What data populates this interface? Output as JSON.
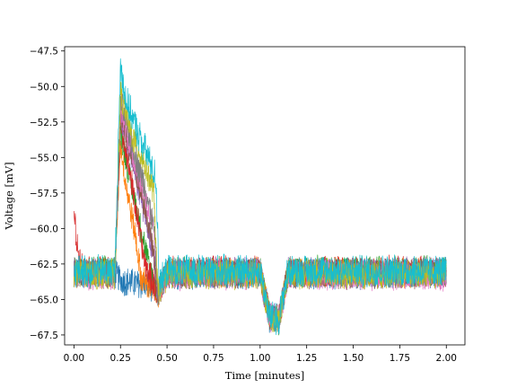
{
  "chart_data": {
    "type": "line",
    "title": "",
    "xlabel": "Time [minutes]",
    "ylabel": "Voltage [mV]",
    "xlim": [
      -0.05,
      2.1
    ],
    "ylim": [
      -68.2,
      -47.2
    ],
    "x_ticks": [
      0.0,
      0.25,
      0.5,
      0.75,
      1.0,
      1.25,
      1.5,
      1.75,
      2.0
    ],
    "x_tick_labels": [
      "0.00",
      "0.25",
      "0.50",
      "0.75",
      "1.00",
      "1.25",
      "1.50",
      "1.75",
      "2.00"
    ],
    "y_ticks": [
      -67.5,
      -65.0,
      -62.5,
      -60.0,
      -57.5,
      -55.0,
      -52.5,
      -50.0,
      -47.5
    ],
    "y_tick_labels": [
      "−67.5",
      "−65.0",
      "−62.5",
      "−60.0",
      "−57.5",
      "−55.0",
      "−52.5",
      "−50.0",
      "−47.5"
    ],
    "grid": false,
    "legend": "none",
    "series": [
      {
        "color": "#1f77b4",
        "baseline": -63.2,
        "noise": 0.9,
        "peak": -63.6,
        "decay_end": 0.3,
        "x": [
          0.0,
          0.22,
          0.25,
          0.3,
          0.4,
          0.45,
          0.5,
          1.0,
          1.05,
          1.1,
          1.15,
          2.0
        ],
        "y": [
          -63.2,
          -63.2,
          -63.6,
          -63.8,
          -64.0,
          -64.4,
          -63.2,
          -63.2,
          -66.2,
          -66.4,
          -63.2,
          -63.2
        ]
      },
      {
        "color": "#ff7f0e",
        "baseline": -63.1,
        "noise": 0.9,
        "peak": -54.0,
        "decay_end": 0.36,
        "x": [
          0.0,
          0.22,
          0.25,
          0.28,
          0.33,
          0.36,
          0.45,
          0.5,
          1.0,
          1.05,
          1.1,
          1.15,
          2.0
        ],
        "y": [
          -63.1,
          -63.1,
          -54.0,
          -57.0,
          -60.5,
          -63.5,
          -64.6,
          -63.1,
          -63.1,
          -66.2,
          -66.4,
          -63.1,
          -63.1
        ]
      },
      {
        "color": "#2ca02c",
        "baseline": -63.0,
        "noise": 0.9,
        "peak": -53.0,
        "decay_end": 0.4,
        "x": [
          0.0,
          0.22,
          0.25,
          0.3,
          0.36,
          0.4,
          0.45,
          0.5,
          1.0,
          1.05,
          1.1,
          1.15,
          2.0
        ],
        "y": [
          -63.0,
          -63.0,
          -53.0,
          -56.5,
          -60.0,
          -62.5,
          -64.6,
          -63.0,
          -63.0,
          -66.2,
          -66.4,
          -63.0,
          -63.0
        ]
      },
      {
        "color": "#d62728",
        "baseline": -63.0,
        "noise": 0.9,
        "peak": -52.5,
        "decay_end": 0.38,
        "x": [
          0.0,
          0.02,
          0.05,
          0.22,
          0.25,
          0.3,
          0.35,
          0.38,
          0.45,
          0.5,
          1.0,
          1.05,
          1.1,
          1.15,
          2.0
        ],
        "y": [
          -59.0,
          -61.5,
          -63.0,
          -63.0,
          -52.5,
          -56.0,
          -60.0,
          -62.5,
          -64.6,
          -63.0,
          -63.0,
          -66.2,
          -66.4,
          -63.0,
          -63.0
        ]
      },
      {
        "color": "#9467bd",
        "baseline": -63.1,
        "noise": 0.9,
        "peak": -52.0,
        "decay_end": 0.42,
        "x": [
          0.0,
          0.22,
          0.25,
          0.32,
          0.38,
          0.42,
          0.45,
          0.5,
          1.0,
          1.05,
          1.1,
          1.15,
          2.0
        ],
        "y": [
          -63.1,
          -63.1,
          -52.0,
          -55.5,
          -59.0,
          -61.5,
          -64.6,
          -63.1,
          -63.1,
          -66.2,
          -66.4,
          -63.1,
          -63.1
        ]
      },
      {
        "color": "#8c564b",
        "baseline": -63.2,
        "noise": 0.9,
        "peak": -52.0,
        "decay_end": 0.42,
        "x": [
          0.0,
          0.22,
          0.25,
          0.32,
          0.38,
          0.42,
          0.45,
          0.5,
          1.0,
          1.05,
          1.1,
          1.15,
          2.0
        ],
        "y": [
          -63.2,
          -63.2,
          -52.0,
          -55.5,
          -58.5,
          -61.0,
          -64.6,
          -63.2,
          -63.2,
          -66.2,
          -66.4,
          -63.2,
          -63.2
        ]
      },
      {
        "color": "#e377c2",
        "baseline": -63.3,
        "noise": 0.9,
        "peak": -51.5,
        "decay_end": 0.43,
        "x": [
          0.0,
          0.22,
          0.25,
          0.32,
          0.38,
          0.43,
          0.45,
          0.5,
          1.0,
          1.05,
          1.1,
          1.15,
          2.0
        ],
        "y": [
          -63.3,
          -63.3,
          -51.5,
          -55.0,
          -57.5,
          -60.5,
          -64.6,
          -63.3,
          -63.3,
          -66.2,
          -66.4,
          -63.3,
          -63.3
        ]
      },
      {
        "color": "#7f7f7f",
        "baseline": -63.1,
        "noise": 0.9,
        "peak": -51.0,
        "decay_end": 0.43,
        "x": [
          0.0,
          0.22,
          0.25,
          0.32,
          0.38,
          0.43,
          0.45,
          0.5,
          1.0,
          1.05,
          1.1,
          1.15,
          2.0
        ],
        "y": [
          -63.1,
          -63.1,
          -51.0,
          -54.5,
          -57.0,
          -60.0,
          -64.6,
          -63.1,
          -63.1,
          -66.2,
          -66.4,
          -63.1,
          -63.1
        ]
      },
      {
        "color": "#bcbd22",
        "baseline": -63.2,
        "noise": 0.9,
        "peak": -50.5,
        "decay_end": 0.43,
        "x": [
          0.0,
          0.22,
          0.25,
          0.3,
          0.38,
          0.43,
          0.45,
          0.5,
          1.0,
          1.05,
          1.1,
          1.15,
          2.0
        ],
        "y": [
          -63.2,
          -63.2,
          -50.5,
          -53.0,
          -55.5,
          -57.5,
          -64.6,
          -63.2,
          -63.2,
          -66.2,
          -66.4,
          -63.2,
          -63.2
        ]
      },
      {
        "color": "#17becf",
        "baseline": -63.0,
        "noise": 1.0,
        "peak": -48.5,
        "decay_end": 0.44,
        "x": [
          0.0,
          0.22,
          0.25,
          0.28,
          0.35,
          0.4,
          0.44,
          0.46,
          0.5,
          1.0,
          1.05,
          1.1,
          1.15,
          2.0
        ],
        "y": [
          -63.0,
          -63.0,
          -48.5,
          -51.0,
          -53.5,
          -55.0,
          -56.5,
          -64.0,
          -63.0,
          -63.0,
          -66.2,
          -66.4,
          -63.0,
          -63.0
        ]
      }
    ]
  }
}
